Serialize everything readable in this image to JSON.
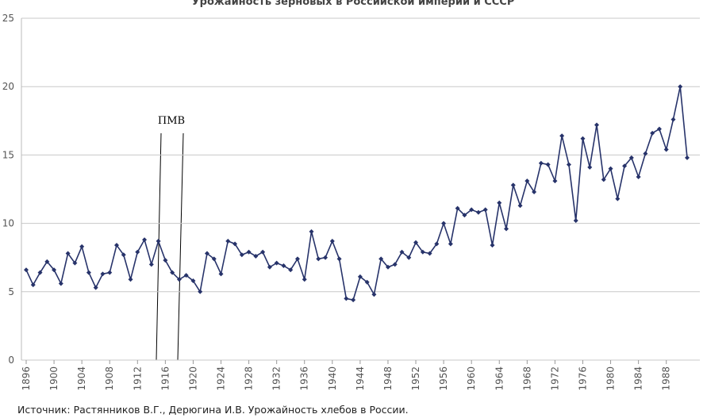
{
  "chart_data": {
    "type": "line",
    "title": "Урожайность зерновых в Российской империи и СССР",
    "source": "Источник: Растянников В.Г., Дерюгина И.В. Урожайность хлебов в России.",
    "annotation": "ПМВ",
    "x": [
      1896,
      1897,
      1898,
      1899,
      1900,
      1901,
      1902,
      1903,
      1904,
      1905,
      1906,
      1907,
      1908,
      1909,
      1910,
      1911,
      1912,
      1913,
      1914,
      1915,
      1916,
      1917,
      1918,
      1919,
      1920,
      1921,
      1922,
      1923,
      1924,
      1925,
      1926,
      1927,
      1928,
      1929,
      1930,
      1931,
      1932,
      1933,
      1934,
      1935,
      1936,
      1937,
      1938,
      1939,
      1940,
      1941,
      1942,
      1943,
      1944,
      1945,
      1946,
      1947,
      1948,
      1949,
      1950,
      1951,
      1952,
      1953,
      1954,
      1955,
      1956,
      1957,
      1958,
      1959,
      1960,
      1961,
      1962,
      1963,
      1964,
      1965,
      1966,
      1967,
      1968,
      1969,
      1970,
      1971,
      1972,
      1973,
      1974,
      1975,
      1976,
      1977,
      1978,
      1979,
      1980,
      1981,
      1982,
      1983,
      1984,
      1985,
      1986,
      1987,
      1988,
      1989,
      1990,
      1991
    ],
    "series": [
      {
        "name": "Урожайность",
        "color": "#27336a",
        "values": [
          6.6,
          5.5,
          6.4,
          7.2,
          6.6,
          5.6,
          7.8,
          7.1,
          8.3,
          6.4,
          5.3,
          6.3,
          6.4,
          8.4,
          7.7,
          5.9,
          7.9,
          8.8,
          7.0,
          8.7,
          7.3,
          6.4,
          5.9,
          6.2,
          5.8,
          5.0,
          7.8,
          7.4,
          6.3,
          8.7,
          8.5,
          7.7,
          7.9,
          7.6,
          7.9,
          6.8,
          7.1,
          6.9,
          6.6,
          7.4,
          5.9,
          9.4,
          7.4,
          7.5,
          8.7,
          7.4,
          4.5,
          4.4,
          6.1,
          5.7,
          4.8,
          7.4,
          6.8,
          7.0,
          7.9,
          7.5,
          8.6,
          7.9,
          7.8,
          8.5,
          10.0,
          8.5,
          11.1,
          10.6,
          11.0,
          10.8,
          11.0,
          8.4,
          11.5,
          9.6,
          12.8,
          11.3,
          13.1,
          12.3,
          14.4,
          14.3,
          13.1,
          16.4,
          14.3,
          10.2,
          16.2,
          14.1,
          17.2,
          13.2,
          14.0,
          11.8,
          14.2,
          14.8,
          13.4,
          15.1,
          16.6,
          16.9,
          15.4,
          17.6,
          20.0,
          14.8
        ]
      }
    ],
    "xlim": [
      1896,
      1991
    ],
    "xticks": [
      1896,
      1900,
      1904,
      1908,
      1912,
      1916,
      1920,
      1924,
      1928,
      1932,
      1936,
      1940,
      1944,
      1948,
      1952,
      1956,
      1960,
      1964,
      1968,
      1972,
      1976,
      1980,
      1984,
      1988
    ],
    "ylim": [
      0,
      25
    ],
    "yticks": [
      0,
      5,
      10,
      15,
      20,
      25
    ],
    "grid": true
  }
}
